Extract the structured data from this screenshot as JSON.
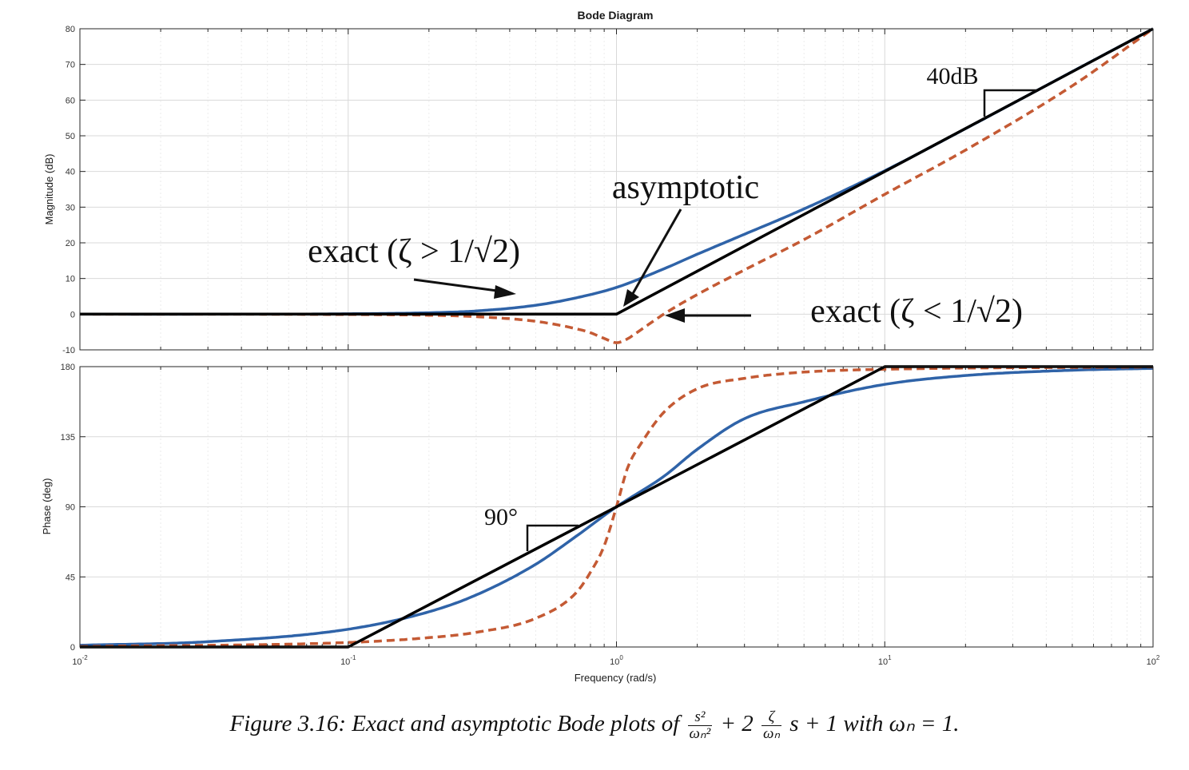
{
  "chart_data": [
    {
      "type": "line",
      "title": "Bode Diagram",
      "xlabel": "",
      "ylabel": "Magnitude (dB)",
      "x_scale": "log",
      "xlim": [
        0.01,
        100
      ],
      "ylim": [
        -10,
        80
      ],
      "yticks": [
        -10,
        0,
        10,
        20,
        30,
        40,
        50,
        60,
        70,
        80
      ],
      "grid": true,
      "series": [
        {
          "name": "exact (ζ > 1/√2)",
          "color": "#2f63a8",
          "style": "solid",
          "x": [
            0.01,
            0.03,
            0.1,
            0.2,
            0.3,
            0.5,
            0.7,
            1,
            1.5,
            2,
            3,
            5,
            10,
            20,
            50,
            100
          ],
          "y": [
            0.0,
            0.0,
            0.1,
            0.4,
            0.9,
            2.5,
            4.5,
            7.5,
            12.7,
            16.8,
            22.4,
            29.5,
            40.2,
            52.0,
            68.0,
            80.0
          ]
        },
        {
          "name": "exact (ζ < 1/√2)",
          "color": "#c45a34",
          "style": "dashed",
          "x": [
            0.01,
            0.1,
            0.2,
            0.3,
            0.5,
            0.7,
            0.8,
            0.9,
            1,
            1.1,
            1.2,
            1.5,
            2,
            3,
            5,
            10,
            20,
            50,
            100
          ],
          "y": [
            0.0,
            -0.1,
            -0.3,
            -0.7,
            -2.0,
            -4.0,
            -5.2,
            -6.8,
            -8.0,
            -6.9,
            -5.0,
            0.0,
            5.5,
            12.4,
            20.9,
            33.6,
            46.0,
            64.0,
            80.0
          ]
        },
        {
          "name": "asymptotic",
          "color": "#000000",
          "style": "solid",
          "x": [
            0.01,
            1,
            100
          ],
          "y": [
            0,
            0,
            80
          ]
        }
      ],
      "annotations": [
        {
          "text": "asymptotic"
        },
        {
          "text": "exact (ζ > 1/√2)"
        },
        {
          "text": "exact (ζ < 1/√2)"
        },
        {
          "text": "40dB"
        }
      ]
    },
    {
      "type": "line",
      "title": "",
      "xlabel": "Frequency  (rad/s)",
      "ylabel": "Phase (deg)",
      "x_scale": "log",
      "xlim": [
        0.01,
        100
      ],
      "ylim": [
        0,
        180
      ],
      "yticks": [
        0,
        45,
        90,
        135,
        180
      ],
      "xticks": [
        {
          "base": "10",
          "exp": "-2"
        },
        {
          "base": "10",
          "exp": "-1"
        },
        {
          "base": "10",
          "exp": "0"
        },
        {
          "base": "10",
          "exp": "1"
        },
        {
          "base": "10",
          "exp": "2"
        }
      ],
      "grid": true,
      "series": [
        {
          "color": "#2f63a8",
          "style": "solid",
          "x": [
            0.01,
            0.03,
            0.1,
            0.2,
            0.3,
            0.5,
            0.7,
            1,
            1.5,
            2,
            3,
            5,
            10,
            20,
            50,
            100
          ],
          "y": [
            1.1,
            3.4,
            11.4,
            22.6,
            33.4,
            53.1,
            70.5,
            90,
            109.5,
            126.9,
            146.6,
            157.4,
            168.6,
            174.3,
            177.7,
            178.9
          ]
        },
        {
          "color": "#c45a34",
          "style": "dashed",
          "x": [
            0.01,
            0.1,
            0.2,
            0.3,
            0.5,
            0.7,
            0.8,
            0.9,
            1,
            1.1,
            1.25,
            1.5,
            2,
            3,
            5,
            10,
            100
          ],
          "y": [
            0.3,
            2.9,
            6.0,
            9.4,
            18.4,
            34.0,
            48.0,
            65.0,
            90,
            115.0,
            132.0,
            150.6,
            165.8,
            172.5,
            176.5,
            178.3,
            179.8
          ]
        },
        {
          "name": "asymptotic",
          "color": "#000000",
          "style": "solid",
          "x": [
            0.01,
            0.1,
            10,
            100
          ],
          "y": [
            0,
            0,
            180,
            180
          ]
        }
      ],
      "annotations": [
        {
          "text": "90°"
        }
      ]
    }
  ],
  "caption": {
    "lead": "Figure 3.16: Exact and asymptotic Bode plots of",
    "frac1_num": "s²",
    "frac1_den": "ωₙ²",
    "mid": "+ 2",
    "frac2_num": "ζ",
    "frac2_den": "ωₙ",
    "tail": "s + 1  with ωₙ = 1."
  }
}
